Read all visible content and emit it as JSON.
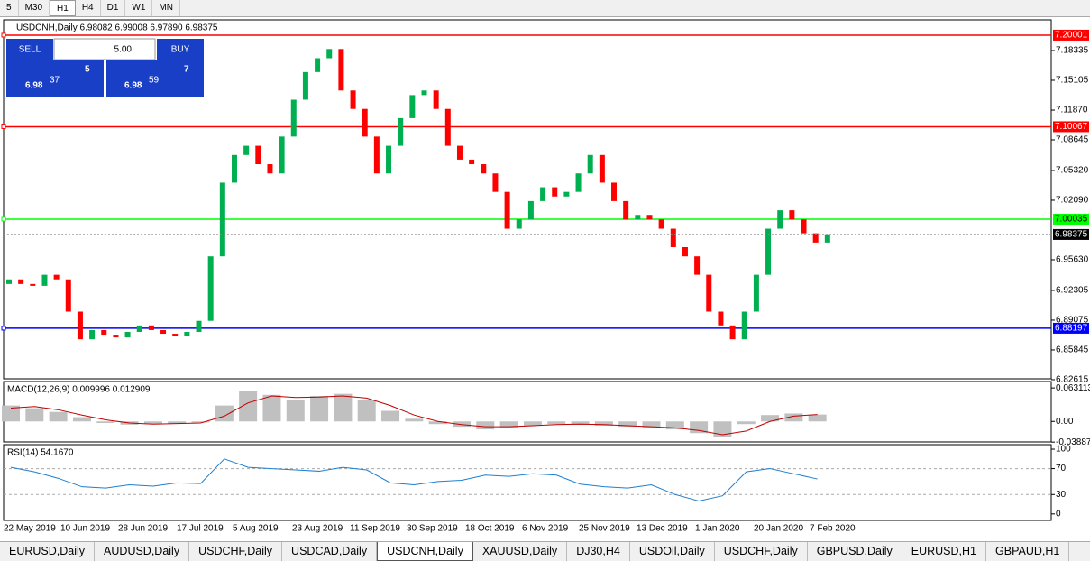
{
  "toolbar": {
    "timeframes": [
      "5",
      "M30",
      "H1",
      "H4",
      "D1",
      "W1",
      "MN"
    ],
    "active": 2
  },
  "chart_data": {
    "type": "candlestick",
    "header": "USDCNH,Daily  6.98082 6.99008 6.97890 6.98375",
    "trade_panel": {
      "sell": "SELL",
      "buy": "BUY",
      "lots": "5.00",
      "sell_big": "6.98",
      "sell_digits": "37",
      "sell_pip": "5",
      "buy_big": "6.98",
      "buy_digits": "59",
      "buy_pip": "7"
    },
    "first_open": 6.93,
    "closes": [
      6.935,
      6.93,
      6.928,
      6.94,
      6.935,
      6.9,
      6.87,
      6.88,
      6.875,
      6.872,
      6.878,
      6.885,
      6.88,
      6.876,
      6.874,
      6.878,
      6.89,
      6.96,
      7.04,
      7.07,
      7.08,
      7.06,
      7.05,
      7.09,
      7.13,
      7.16,
      7.175,
      7.185,
      7.14,
      7.12,
      7.09,
      7.05,
      7.08,
      7.11,
      7.135,
      7.14,
      7.12,
      7.08,
      7.065,
      7.06,
      7.05,
      7.03,
      6.99,
      7.0,
      7.02,
      7.035,
      7.025,
      7.03,
      7.05,
      7.07,
      7.04,
      7.02,
      7.0,
      7.005,
      7.0,
      6.99,
      6.97,
      6.96,
      6.94,
      6.9,
      6.885,
      6.87,
      6.9,
      6.94,
      6.99,
      7.01,
      7.0,
      6.985,
      6.975,
      6.984
    ],
    "up_color": "#00b050",
    "down_color": "#ff0000",
    "ylim": [
      6.8271,
      7.2166
    ],
    "yticks": [
      {
        "value": 7.18335,
        "label": "7.18335"
      },
      {
        "value": 7.15105,
        "label": "7.15105"
      },
      {
        "value": 7.1187,
        "label": "7.11870"
      },
      {
        "value": 7.08645,
        "label": "7.08645"
      },
      {
        "value": 7.0532,
        "label": "7.05320"
      },
      {
        "value": 7.0209,
        "label": "7.02090"
      },
      {
        "value": 6.9563,
        "label": "6.95630"
      },
      {
        "value": 6.92305,
        "label": "6.92305"
      },
      {
        "value": 6.89075,
        "label": "6.89075"
      },
      {
        "value": 6.85845,
        "label": "6.85845"
      },
      {
        "value": 6.82615,
        "label": "6.82615"
      }
    ],
    "levels": [
      {
        "value": 7.20001,
        "label": "7.20001",
        "color": "#ff0000"
      },
      {
        "value": 7.10067,
        "label": "7.10067",
        "color": "#ff0000"
      },
      {
        "value": 7.00035,
        "label": "7.00035",
        "color": "#00ff00"
      },
      {
        "value": 6.88197,
        "label": "6.88197",
        "color": "#0000ff"
      }
    ],
    "current": {
      "value": 6.98375,
      "label": "6.98375"
    },
    "date_labels": [
      "22 May 2019",
      "10 Jun 2019",
      "28 Jun 2019",
      "17 Jul 2019",
      "5 Aug 2019",
      "23 Aug 2019",
      "11 Sep 2019",
      "30 Sep 2019",
      "18 Oct 2019",
      "6 Nov 2019",
      "25 Nov 2019",
      "13 Dec 2019",
      "1 Jan 2020",
      "20 Jan 2020",
      "7 Feb 2020"
    ],
    "macd": {
      "title": "MACD(12,26,9) 0.009996 0.012909",
      "ylim": [
        -0.0386,
        0.0752
      ],
      "yticks": [
        {
          "value": 0.063113,
          "label": "0.063113"
        },
        {
          "value": 0,
          "label": "0.00"
        },
        {
          "value": -0.038872,
          "label": "-0.038872"
        }
      ],
      "histogram": [
        0.03,
        0.025,
        0.018,
        0.008,
        -0.003,
        -0.006,
        -0.005,
        -0.004,
        -0.002,
        0.03,
        0.058,
        0.05,
        0.04,
        0.048,
        0.052,
        0.04,
        0.02,
        0.005,
        -0.005,
        -0.01,
        -0.015,
        -0.012,
        -0.008,
        -0.005,
        -0.006,
        -0.008,
        -0.01,
        -0.012,
        -0.015,
        -0.022,
        -0.03,
        -0.005,
        0.012,
        0.015,
        0.013
      ],
      "signal": [
        0.025,
        0.028,
        0.022,
        0.012,
        0.003,
        -0.003,
        -0.005,
        -0.004,
        -0.003,
        0.01,
        0.035,
        0.048,
        0.045,
        0.046,
        0.048,
        0.044,
        0.03,
        0.012,
        0.0,
        -0.006,
        -0.01,
        -0.01,
        -0.008,
        -0.006,
        -0.005,
        -0.006,
        -0.008,
        -0.01,
        -0.012,
        -0.017,
        -0.025,
        -0.018,
        0.0,
        0.01,
        0.013
      ]
    },
    "rsi": {
      "title": "RSI(14) 54.1670",
      "ylim": [
        -10,
        107
      ],
      "yticks": [
        100,
        70,
        30,
        0
      ],
      "levels": [
        70,
        30
      ],
      "values": [
        72,
        65,
        55,
        42,
        40,
        45,
        43,
        48,
        47,
        85,
        72,
        70,
        68,
        66,
        72,
        68,
        48,
        45,
        50,
        52,
        60,
        58,
        62,
        60,
        46,
        42,
        40,
        45,
        30,
        20,
        28,
        65,
        70,
        62,
        54
      ]
    }
  },
  "tabs": {
    "items": [
      "EURUSD,Daily",
      "AUDUSD,Daily",
      "USDCHF,Daily",
      "USDCAD,Daily",
      "USDCNH,Daily",
      "XAUUSD,Daily",
      "DJ30,H4",
      "USDOil,Daily",
      "USDCHF,Daily",
      "GBPUSD,Daily",
      "EURUSD,H1",
      "GBPAUD,H1"
    ],
    "active": 4
  }
}
